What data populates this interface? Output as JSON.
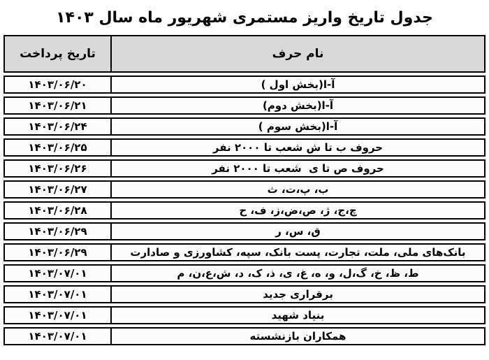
{
  "title": "جدول تاریخ واریز مستمری شهریور ماه سال ۱۴۰۳",
  "table": {
    "headers": {
      "name": "نام حرف",
      "date": "تاریخ پرداخت"
    },
    "rows": [
      {
        "date": "۱۴۰۳/۰۶/۲۰",
        "name": "آ-ا(بخش اول )"
      },
      {
        "date": "۱۴۰۳/۰۶/۲۱",
        "name": "آ-ا(بخش دوم)"
      },
      {
        "date": "۱۴۰۳/۰۶/۲۴",
        "name": "آ-ا(بخش سوم )"
      },
      {
        "date": "۱۴۰۳/۰۶/۲۵",
        "name": "حروف ب تا ش شعب تا ۲۰۰۰ نفر"
      },
      {
        "date": "۱۴۰۳/۰۶/۲۶",
        "name": "حروف ص تا ی  شعب تا ۲۰۰۰ نفر"
      },
      {
        "date": "۱۴۰۳/۰۶/۲۷",
        "name": "ب، پ،ت، ث"
      },
      {
        "date": "۱۴۰۳/۰۶/۲۸",
        "name": "چ،ج، ژ، ص،ض،ز، ف، ح"
      },
      {
        "date": "۱۴۰۳/۰۶/۲۹",
        "name": "ق، س، ر"
      },
      {
        "date": "۱۴۰۳/۰۶/۲۹",
        "name": "بانک‌های ملی، ملت، تجارت، پست بانک، سپه، کشاورزی و صادارت"
      },
      {
        "date": "۱۴۰۳/۰۷/۰۱",
        "name": "ط، ظ، خ، گ،ل، و، ه، غ، ی، ذ، ک، د، ش،ع،ن، م"
      },
      {
        "date": "۱۴۰۳/۰۷/۰۱",
        "name": "برقراری جدید"
      },
      {
        "date": "۱۴۰۳/۰۷/۰۱",
        "name": "بنیاد شهید"
      },
      {
        "date": "۱۴۰۳/۰۷/۰۱",
        "name": "همکاران بازنشسته"
      }
    ]
  },
  "colors": {
    "header_bg": "#d9d9d9",
    "border": "#000000",
    "cell_bg": "#fcfcfc",
    "text": "#000000"
  }
}
